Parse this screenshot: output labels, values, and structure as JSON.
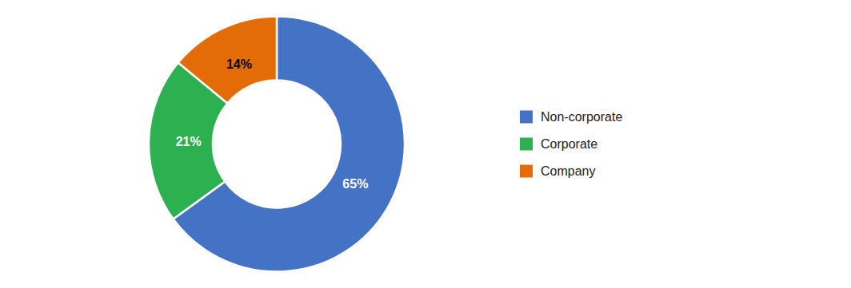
{
  "chart_data": {
    "type": "donut",
    "categories": [
      "Non-corporate",
      "Corporate",
      "Company"
    ],
    "values": [
      65,
      21,
      14
    ],
    "value_labels": [
      "65%",
      "21%",
      "14%"
    ],
    "colors": [
      "#4472c4",
      "#2db050",
      "#e36c09"
    ],
    "data_labels": true,
    "legend": "right"
  }
}
